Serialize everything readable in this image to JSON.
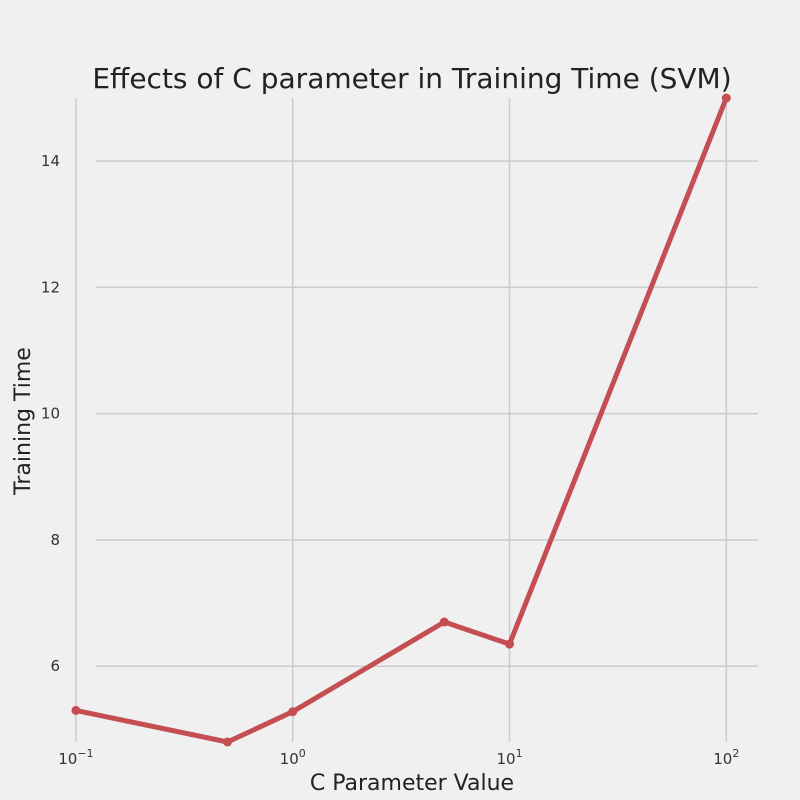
{
  "chart_data": {
    "type": "line",
    "title": "Effects of C parameter in Training Time (SVM)",
    "xlabel": "C Parameter Value",
    "ylabel": "Training Time",
    "xscale": "log",
    "xlim": [
      0.1,
      100
    ],
    "ylim": [
      4.8,
      15.0
    ],
    "grid": true,
    "x_ticks": [
      {
        "base": "10",
        "exp": "−1",
        "value": 0.1
      },
      {
        "base": "10",
        "exp": "0",
        "value": 1
      },
      {
        "base": "10",
        "exp": "1",
        "value": 10
      },
      {
        "base": "10",
        "exp": "2",
        "value": 100
      }
    ],
    "y_ticks": [
      "6",
      "8",
      "10",
      "12",
      "14"
    ],
    "series": [
      {
        "color": "#c44e52",
        "x": [
          0.1,
          0.5,
          1,
          5,
          10,
          100
        ],
        "y": [
          5.3,
          4.8,
          5.28,
          6.7,
          6.35,
          15.0
        ]
      }
    ]
  }
}
